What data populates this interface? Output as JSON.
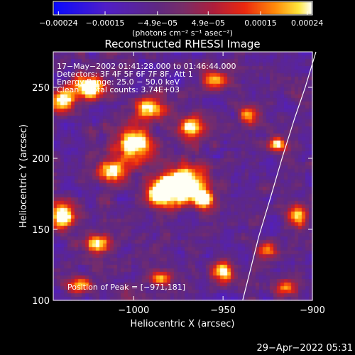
{
  "chart_data": {
    "type": "heatmap",
    "title": "Reconstructed RHESSI Image",
    "xlabel": "Heliocentric X (arcsec)",
    "ylabel": "Heliocentric Y (arcsec)",
    "xlim": [
      -1045,
      -900
    ],
    "ylim": [
      100,
      275
    ],
    "x_ticks": [
      {
        "value": -1000,
        "label": "−1000"
      },
      {
        "value": -950,
        "label": "−950"
      },
      {
        "value": -900,
        "label": "−900"
      }
    ],
    "y_ticks": [
      {
        "value": 100,
        "label": "100"
      },
      {
        "value": 150,
        "label": "150"
      },
      {
        "value": 200,
        "label": "200"
      },
      {
        "value": 250,
        "label": "250"
      }
    ],
    "colorbar": {
      "range": [
        -0.00025,
        0.00025
      ],
      "ticks": [
        {
          "value": -0.00024,
          "label": "−0.00024"
        },
        {
          "value": -0.00015,
          "label": "−0.00015"
        },
        {
          "value": -4.9e-05,
          "label": "−4.9e−05"
        },
        {
          "value": 4.9e-05,
          "label": "4.9e−05"
        },
        {
          "value": 0.00015,
          "label": "0.00015"
        },
        {
          "value": 0.00024,
          "label": "0.00024"
        }
      ],
      "unit_label": "(photons cm⁻² s⁻¹ asec⁻²)"
    },
    "annotations": [
      "17−May−2002 01:41:28.000 to 01:46:44.000",
      "Detectors: 3F 4F 5F 6F 7F 8F, Att 1",
      "Energy Range: 25.0 − 50.0 keV",
      "Clean    Total counts: 3.74E+03"
    ],
    "peak_label": "Position of Peak = [−971,181]",
    "peak": [
      -971,
      181
    ],
    "limb_curve": [
      [
        -939,
        100
      ],
      [
        -935,
        120
      ],
      [
        -930,
        145
      ],
      [
        -924,
        170
      ],
      [
        -917,
        200
      ],
      [
        -910,
        228
      ],
      [
        -904,
        250
      ],
      [
        -898,
        275
      ]
    ],
    "blobs": [
      [
        -971,
        181,
        8,
        9,
        1.0
      ],
      [
        -985,
        175,
        6,
        7,
        0.75
      ],
      [
        -1000,
        210,
        7,
        9,
        0.8
      ],
      [
        -1025,
        250,
        6,
        6,
        0.85
      ],
      [
        -1040,
        240,
        5,
        6,
        0.7
      ],
      [
        -1040,
        160,
        5,
        7,
        0.8
      ],
      [
        -1012,
        190,
        6,
        6,
        0.6
      ],
      [
        -1020,
        140,
        5,
        5,
        0.6
      ],
      [
        -990,
        235,
        6,
        5,
        0.7
      ],
      [
        -967,
        222,
        5,
        6,
        0.7
      ],
      [
        -955,
        255,
        5,
        5,
        0.6
      ],
      [
        -960,
        170,
        4,
        5,
        0.6
      ],
      [
        -950,
        120,
        4,
        5,
        0.7
      ],
      [
        -935,
        230,
        4,
        5,
        0.55
      ],
      [
        -920,
        210,
        4,
        4,
        0.55
      ],
      [
        -908,
        160,
        4,
        5,
        0.6
      ],
      [
        -925,
        135,
        4,
        4,
        0.5
      ],
      [
        -985,
        115,
        5,
        4,
        0.55
      ],
      [
        -1030,
        110,
        5,
        4,
        0.55
      ],
      [
        -915,
        110,
        4,
        4,
        0.45
      ]
    ],
    "base_level": 0.55
  },
  "footer": {
    "timestamp": "29−Apr−2022 05:31"
  }
}
